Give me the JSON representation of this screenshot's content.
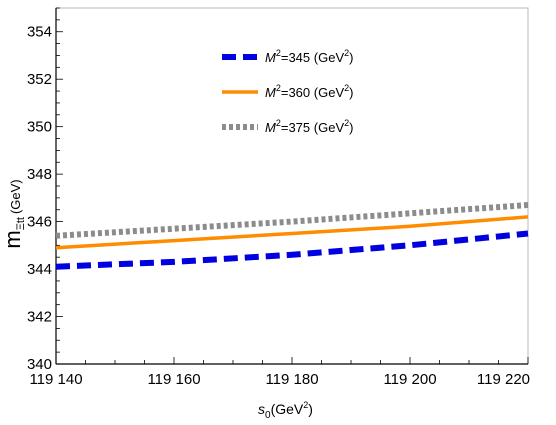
{
  "chart_data": {
    "type": "line",
    "xlabel_main": "s",
    "xlabel_sub": "0",
    "xlabel_unit": "(GeV",
    "xlabel_sup": "2",
    "xlabel_close": ")",
    "ylabel_main": "m",
    "ylabel_sub": "Ξtt",
    "ylabel_unit": "(GeV)",
    "xlim": [
      119140,
      119220
    ],
    "ylim": [
      340,
      355
    ],
    "xticks": [
      119140,
      119160,
      119180,
      119200,
      119220
    ],
    "xtick_labels": [
      "119 140",
      "119 160",
      "119 180",
      "119 200",
      "119 220"
    ],
    "yticks": [
      340,
      342,
      344,
      346,
      348,
      350,
      352,
      354
    ],
    "ytick_labels": [
      "340",
      "342",
      "344",
      "346",
      "348",
      "350",
      "352",
      "354"
    ],
    "legend_position": "top-center",
    "series": [
      {
        "name_main": "M",
        "name_sup": "2",
        "name_value": "=345",
        "name_unit": " (GeV",
        "name_unit_sup": "2",
        "name_close": ")",
        "style": "dashed",
        "color": "#0000e0",
        "x": [
          119140,
          119160,
          119180,
          119200,
          119220
        ],
        "y": [
          344.1,
          344.3,
          344.6,
          345.0,
          345.5
        ]
      },
      {
        "name_main": "M",
        "name_sup": "2",
        "name_value": "=360",
        "name_unit": " (GeV",
        "name_unit_sup": "2",
        "name_close": ")",
        "style": "solid",
        "color": "#ff8c00",
        "x": [
          119140,
          119160,
          119180,
          119200,
          119220
        ],
        "y": [
          344.9,
          345.2,
          345.5,
          345.8,
          346.2
        ]
      },
      {
        "name_main": "M",
        "name_sup": "2",
        "name_value": "=375",
        "name_unit": " (GeV",
        "name_unit_sup": "2",
        "name_close": ")",
        "style": "dotted",
        "color": "#8c8c8c",
        "x": [
          119140,
          119160,
          119180,
          119200,
          119220
        ],
        "y": [
          345.4,
          345.7,
          346.0,
          346.35,
          346.7
        ]
      }
    ]
  }
}
